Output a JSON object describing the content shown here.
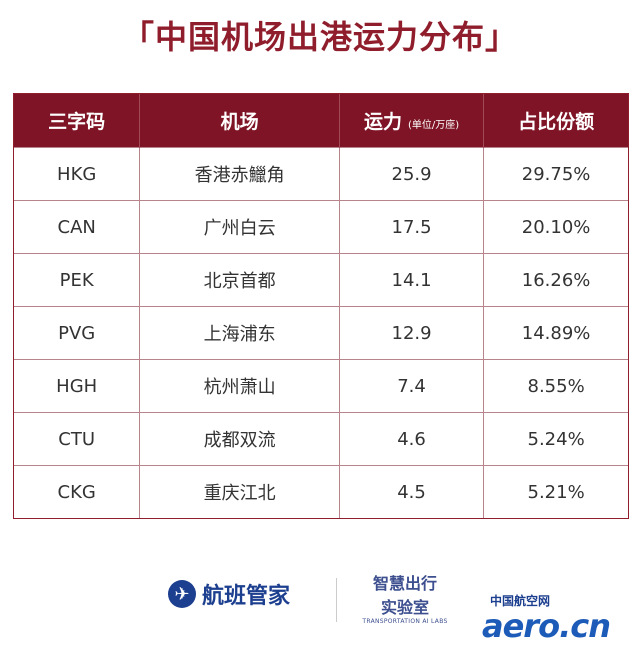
{
  "title": "「中国机场出港运力分布」",
  "table": {
    "headers": {
      "code": "三字码",
      "airport": "机场",
      "capacity": "运力",
      "capacity_unit": "(单位/万座)",
      "share": "占比份额"
    },
    "rows": [
      {
        "code": "HKG",
        "airport": "香港赤鱲角",
        "capacity": "25.9",
        "share": "29.75%"
      },
      {
        "code": "CAN",
        "airport": "广州白云",
        "capacity": "17.5",
        "share": "20.10%"
      },
      {
        "code": "PEK",
        "airport": "北京首都",
        "capacity": "14.1",
        "share": "16.26%"
      },
      {
        "code": "PVG",
        "airport": "上海浦东",
        "capacity": "12.9",
        "share": "14.89%"
      },
      {
        "code": "HGH",
        "airport": "杭州萧山",
        "capacity": "7.4",
        "share": "8.55%"
      },
      {
        "code": "CTU",
        "airport": "成都双流",
        "capacity": "4.6",
        "share": "5.24%"
      },
      {
        "code": "CKG",
        "airport": "重庆江北",
        "capacity": "4.5",
        "share": "5.21%"
      }
    ]
  },
  "footer": {
    "brand1": "航班管家",
    "brand1_icon": "plane-icon",
    "brand2_line1": "智慧出行",
    "brand2_line2": "实验室",
    "brand2_line3": "TRANSPORTATION AI LABS",
    "brand3_cn": "中国航空网",
    "brand3_en": "aero.cn"
  },
  "colors": {
    "accent": "#8f1d2c",
    "header_bg": "#7e1425",
    "brand_blue": "#1d3f8f"
  }
}
